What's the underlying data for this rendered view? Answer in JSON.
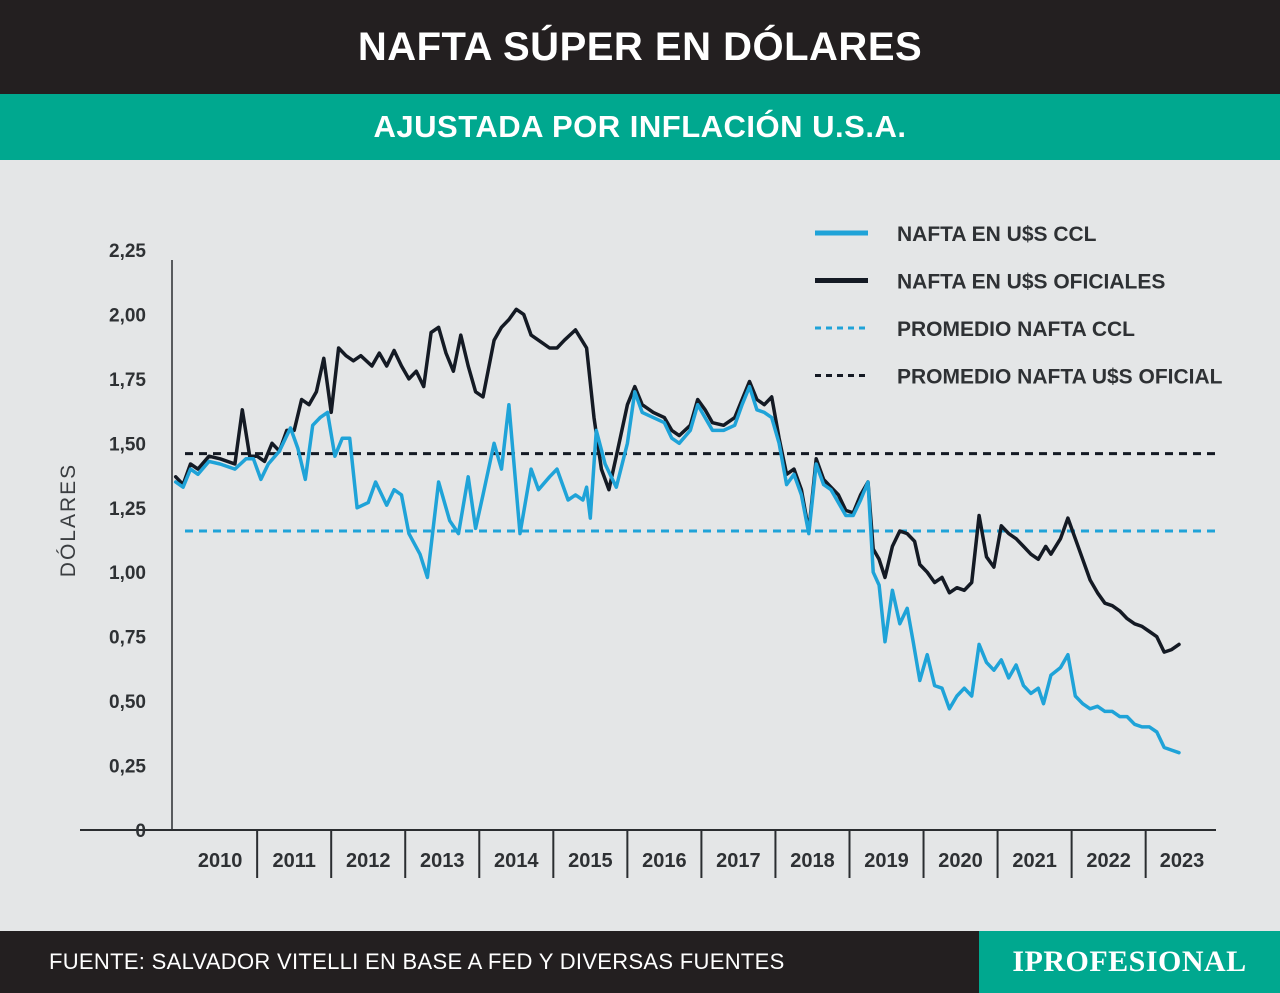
{
  "header": {
    "title": "NAFTA SÚPER EN DÓLARES",
    "subtitle": "AJUSTADA POR INFLACIÓN U.S.A."
  },
  "footer": {
    "source": "FUENTE: SALVADOR VITELLI EN BASE A FED Y DIVERSAS FUENTES",
    "brand": "IPROFESIONAL"
  },
  "colors": {
    "ccl": "#1fa3d8",
    "oficial": "#141a24",
    "avg_ccl": "#1fa3d8",
    "avg_oficial": "#141a24",
    "title_bg": "#231f20",
    "accent": "#00a88f",
    "plot_bg": "#e4e6e7"
  },
  "chart_data": {
    "type": "line",
    "title": "NAFTA SÚPER EN DÓLARES",
    "subtitle": "AJUSTADA POR INFLACIÓN U.S.A.",
    "xlabel": "",
    "ylabel": "DÓLARES",
    "ylim": [
      0,
      2.25
    ],
    "xlim": [
      2009.85,
      2023.95
    ],
    "y_ticks": [
      0,
      0.25,
      0.5,
      0.75,
      1.0,
      1.25,
      1.5,
      1.75,
      2.0,
      2.25
    ],
    "y_tick_labels": [
      "0",
      "0,25",
      "0,50",
      "0,75",
      "1,00",
      "1,25",
      "1,50",
      "1,75",
      "2,00",
      "2,25"
    ],
    "x_categories": [
      "2010",
      "2011",
      "2012",
      "2013",
      "2014",
      "2015",
      "2016",
      "2017",
      "2018",
      "2019",
      "2020",
      "2021",
      "2022",
      "2023"
    ],
    "grid": false,
    "legend_position": "top-right",
    "series": [
      {
        "name": "NAFTA EN U$S CCL",
        "style": "solid",
        "points": [
          [
            2009.9,
            1.35
          ],
          [
            2010.0,
            1.33
          ],
          [
            2010.1,
            1.4
          ],
          [
            2010.2,
            1.38
          ],
          [
            2010.35,
            1.43
          ],
          [
            2010.5,
            1.42
          ],
          [
            2010.7,
            1.4
          ],
          [
            2010.85,
            1.44
          ],
          [
            2010.95,
            1.44
          ],
          [
            2011.05,
            1.36
          ],
          [
            2011.15,
            1.42
          ],
          [
            2011.3,
            1.47
          ],
          [
            2011.45,
            1.56
          ],
          [
            2011.55,
            1.48
          ],
          [
            2011.65,
            1.36
          ],
          [
            2011.75,
            1.57
          ],
          [
            2011.85,
            1.6
          ],
          [
            2011.95,
            1.62
          ],
          [
            2012.05,
            1.45
          ],
          [
            2012.15,
            1.52
          ],
          [
            2012.25,
            1.52
          ],
          [
            2012.35,
            1.25
          ],
          [
            2012.5,
            1.27
          ],
          [
            2012.6,
            1.35
          ],
          [
            2012.75,
            1.26
          ],
          [
            2012.85,
            1.32
          ],
          [
            2012.95,
            1.3
          ],
          [
            2013.05,
            1.15
          ],
          [
            2013.2,
            1.07
          ],
          [
            2013.3,
            0.98
          ],
          [
            2013.45,
            1.35
          ],
          [
            2013.6,
            1.2
          ],
          [
            2013.72,
            1.15
          ],
          [
            2013.85,
            1.37
          ],
          [
            2013.95,
            1.17
          ],
          [
            2014.05,
            1.3
          ],
          [
            2014.2,
            1.5
          ],
          [
            2014.3,
            1.4
          ],
          [
            2014.4,
            1.65
          ],
          [
            2014.55,
            1.15
          ],
          [
            2014.7,
            1.4
          ],
          [
            2014.8,
            1.32
          ],
          [
            2014.95,
            1.37
          ],
          [
            2015.05,
            1.4
          ],
          [
            2015.2,
            1.28
          ],
          [
            2015.3,
            1.3
          ],
          [
            2015.4,
            1.28
          ],
          [
            2015.45,
            1.33
          ],
          [
            2015.5,
            1.21
          ],
          [
            2015.58,
            1.55
          ],
          [
            2015.7,
            1.42
          ],
          [
            2015.85,
            1.33
          ],
          [
            2016.0,
            1.5
          ],
          [
            2016.1,
            1.7
          ],
          [
            2016.2,
            1.62
          ],
          [
            2016.35,
            1.6
          ],
          [
            2016.5,
            1.58
          ],
          [
            2016.6,
            1.52
          ],
          [
            2016.7,
            1.5
          ],
          [
            2016.85,
            1.55
          ],
          [
            2016.95,
            1.65
          ],
          [
            2017.05,
            1.6
          ],
          [
            2017.15,
            1.55
          ],
          [
            2017.3,
            1.55
          ],
          [
            2017.45,
            1.57
          ],
          [
            2017.55,
            1.65
          ],
          [
            2017.65,
            1.72
          ],
          [
            2017.75,
            1.63
          ],
          [
            2017.85,
            1.62
          ],
          [
            2017.95,
            1.6
          ],
          [
            2018.05,
            1.5
          ],
          [
            2018.15,
            1.34
          ],
          [
            2018.25,
            1.38
          ],
          [
            2018.35,
            1.3
          ],
          [
            2018.45,
            1.15
          ],
          [
            2018.55,
            1.42
          ],
          [
            2018.65,
            1.34
          ],
          [
            2018.75,
            1.32
          ],
          [
            2018.85,
            1.27
          ],
          [
            2018.95,
            1.22
          ],
          [
            2019.05,
            1.22
          ],
          [
            2019.15,
            1.28
          ],
          [
            2019.25,
            1.35
          ],
          [
            2019.32,
            1.0
          ],
          [
            2019.4,
            0.95
          ],
          [
            2019.48,
            0.73
          ],
          [
            2019.58,
            0.93
          ],
          [
            2019.68,
            0.8
          ],
          [
            2019.78,
            0.86
          ],
          [
            2019.86,
            0.73
          ],
          [
            2019.95,
            0.58
          ],
          [
            2020.05,
            0.68
          ],
          [
            2020.15,
            0.56
          ],
          [
            2020.25,
            0.55
          ],
          [
            2020.35,
            0.47
          ],
          [
            2020.45,
            0.52
          ],
          [
            2020.55,
            0.55
          ],
          [
            2020.65,
            0.52
          ],
          [
            2020.75,
            0.72
          ],
          [
            2020.85,
            0.65
          ],
          [
            2020.95,
            0.62
          ],
          [
            2021.05,
            0.66
          ],
          [
            2021.15,
            0.59
          ],
          [
            2021.25,
            0.64
          ],
          [
            2021.35,
            0.56
          ],
          [
            2021.45,
            0.53
          ],
          [
            2021.55,
            0.55
          ],
          [
            2021.62,
            0.49
          ],
          [
            2021.72,
            0.6
          ],
          [
            2021.85,
            0.63
          ],
          [
            2021.95,
            0.68
          ],
          [
            2022.05,
            0.52
          ],
          [
            2022.15,
            0.49
          ],
          [
            2022.25,
            0.47
          ],
          [
            2022.35,
            0.48
          ],
          [
            2022.45,
            0.46
          ],
          [
            2022.55,
            0.46
          ],
          [
            2022.65,
            0.44
          ],
          [
            2022.75,
            0.44
          ],
          [
            2022.85,
            0.41
          ],
          [
            2022.95,
            0.4
          ],
          [
            2023.05,
            0.4
          ],
          [
            2023.15,
            0.38
          ],
          [
            2023.25,
            0.32
          ],
          [
            2023.35,
            0.31
          ],
          [
            2023.45,
            0.3
          ]
        ]
      },
      {
        "name": "NAFTA EN U$S OFICIALES",
        "style": "solid",
        "points": [
          [
            2009.9,
            1.37
          ],
          [
            2010.0,
            1.34
          ],
          [
            2010.1,
            1.42
          ],
          [
            2010.2,
            1.4
          ],
          [
            2010.35,
            1.45
          ],
          [
            2010.5,
            1.44
          ],
          [
            2010.7,
            1.42
          ],
          [
            2010.8,
            1.63
          ],
          [
            2010.9,
            1.45
          ],
          [
            2011.0,
            1.45
          ],
          [
            2011.1,
            1.43
          ],
          [
            2011.2,
            1.5
          ],
          [
            2011.3,
            1.47
          ],
          [
            2011.4,
            1.55
          ],
          [
            2011.5,
            1.55
          ],
          [
            2011.6,
            1.67
          ],
          [
            2011.7,
            1.65
          ],
          [
            2011.8,
            1.7
          ],
          [
            2011.9,
            1.83
          ],
          [
            2012.0,
            1.62
          ],
          [
            2012.1,
            1.87
          ],
          [
            2012.2,
            1.84
          ],
          [
            2012.3,
            1.82
          ],
          [
            2012.4,
            1.84
          ],
          [
            2012.55,
            1.8
          ],
          [
            2012.65,
            1.85
          ],
          [
            2012.75,
            1.8
          ],
          [
            2012.85,
            1.86
          ],
          [
            2012.95,
            1.8
          ],
          [
            2013.05,
            1.75
          ],
          [
            2013.15,
            1.78
          ],
          [
            2013.25,
            1.72
          ],
          [
            2013.35,
            1.93
          ],
          [
            2013.45,
            1.95
          ],
          [
            2013.55,
            1.85
          ],
          [
            2013.65,
            1.78
          ],
          [
            2013.75,
            1.92
          ],
          [
            2013.85,
            1.8
          ],
          [
            2013.95,
            1.7
          ],
          [
            2014.05,
            1.68
          ],
          [
            2014.2,
            1.9
          ],
          [
            2014.3,
            1.95
          ],
          [
            2014.4,
            1.98
          ],
          [
            2014.5,
            2.02
          ],
          [
            2014.6,
            2.0
          ],
          [
            2014.7,
            1.92
          ],
          [
            2014.85,
            1.89
          ],
          [
            2014.95,
            1.87
          ],
          [
            2015.05,
            1.87
          ],
          [
            2015.15,
            1.9
          ],
          [
            2015.3,
            1.94
          ],
          [
            2015.45,
            1.87
          ],
          [
            2015.55,
            1.6
          ],
          [
            2015.65,
            1.4
          ],
          [
            2015.75,
            1.32
          ],
          [
            2015.85,
            1.45
          ],
          [
            2016.0,
            1.65
          ],
          [
            2016.1,
            1.72
          ],
          [
            2016.2,
            1.65
          ],
          [
            2016.35,
            1.62
          ],
          [
            2016.5,
            1.6
          ],
          [
            2016.6,
            1.55
          ],
          [
            2016.7,
            1.53
          ],
          [
            2016.85,
            1.57
          ],
          [
            2016.95,
            1.67
          ],
          [
            2017.05,
            1.63
          ],
          [
            2017.15,
            1.58
          ],
          [
            2017.3,
            1.57
          ],
          [
            2017.45,
            1.6
          ],
          [
            2017.55,
            1.67
          ],
          [
            2017.65,
            1.74
          ],
          [
            2017.75,
            1.67
          ],
          [
            2017.85,
            1.65
          ],
          [
            2017.95,
            1.68
          ],
          [
            2018.05,
            1.52
          ],
          [
            2018.15,
            1.38
          ],
          [
            2018.25,
            1.4
          ],
          [
            2018.35,
            1.32
          ],
          [
            2018.45,
            1.16
          ],
          [
            2018.55,
            1.44
          ],
          [
            2018.65,
            1.36
          ],
          [
            2018.75,
            1.33
          ],
          [
            2018.85,
            1.3
          ],
          [
            2018.95,
            1.24
          ],
          [
            2019.05,
            1.23
          ],
          [
            2019.15,
            1.3
          ],
          [
            2019.25,
            1.35
          ],
          [
            2019.32,
            1.09
          ],
          [
            2019.4,
            1.05
          ],
          [
            2019.48,
            0.98
          ],
          [
            2019.58,
            1.1
          ],
          [
            2019.68,
            1.16
          ],
          [
            2019.78,
            1.15
          ],
          [
            2019.88,
            1.12
          ],
          [
            2019.95,
            1.03
          ],
          [
            2020.05,
            1.0
          ],
          [
            2020.15,
            0.96
          ],
          [
            2020.25,
            0.98
          ],
          [
            2020.35,
            0.92
          ],
          [
            2020.45,
            0.94
          ],
          [
            2020.55,
            0.93
          ],
          [
            2020.65,
            0.96
          ],
          [
            2020.75,
            1.22
          ],
          [
            2020.85,
            1.06
          ],
          [
            2020.95,
            1.02
          ],
          [
            2021.05,
            1.18
          ],
          [
            2021.15,
            1.15
          ],
          [
            2021.25,
            1.13
          ],
          [
            2021.35,
            1.1
          ],
          [
            2021.45,
            1.07
          ],
          [
            2021.55,
            1.05
          ],
          [
            2021.65,
            1.1
          ],
          [
            2021.72,
            1.07
          ],
          [
            2021.85,
            1.13
          ],
          [
            2021.95,
            1.21
          ],
          [
            2022.05,
            1.13
          ],
          [
            2022.15,
            1.05
          ],
          [
            2022.25,
            0.97
          ],
          [
            2022.35,
            0.92
          ],
          [
            2022.45,
            0.88
          ],
          [
            2022.55,
            0.87
          ],
          [
            2022.65,
            0.85
          ],
          [
            2022.75,
            0.82
          ],
          [
            2022.85,
            0.8
          ],
          [
            2022.95,
            0.79
          ],
          [
            2023.05,
            0.77
          ],
          [
            2023.15,
            0.75
          ],
          [
            2023.25,
            0.69
          ],
          [
            2023.35,
            0.7
          ],
          [
            2023.45,
            0.72
          ]
        ]
      },
      {
        "name": "PROMEDIO NAFTA CCL",
        "style": "dashed",
        "constant": 1.16
      },
      {
        "name": "PROMEDIO NAFTA U$S OFICIAL",
        "style": "dashed",
        "constant": 1.46
      }
    ]
  }
}
